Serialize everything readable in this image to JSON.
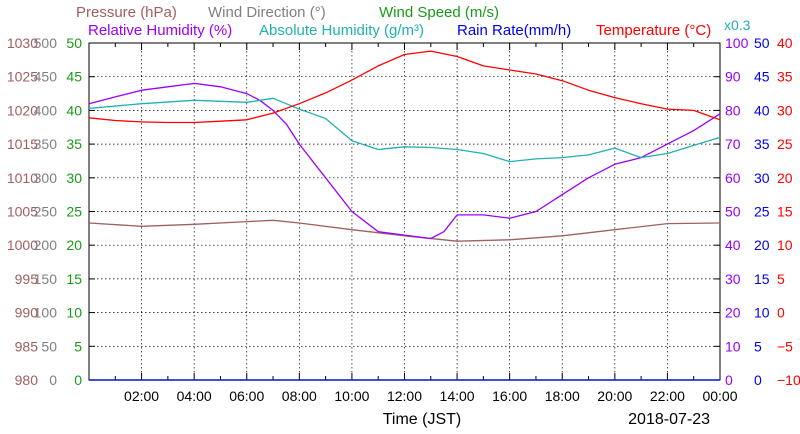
{
  "chart_data": {
    "type": "line",
    "xlabel": "Time (JST)",
    "date": "2018-07-23",
    "x_ticks": [
      "02:00",
      "04:00",
      "06:00",
      "08:00",
      "10:00",
      "12:00",
      "14:00",
      "16:00",
      "18:00",
      "20:00",
      "22:00",
      "00:00"
    ],
    "x_range_hours": [
      0,
      24
    ],
    "grid": true,
    "legend": {
      "row1": [
        "Pressure (hPa)",
        "Wind Direction (°)",
        "Wind Speed (m/s)"
      ],
      "row2": [
        "Relative Humidity (%)",
        "Absolute Humidity (g/m³)",
        "Rain Rate(mm/h)",
        "Temperature (°C)"
      ],
      "multiplier_note": "x0.3"
    },
    "axes": {
      "pressure": {
        "label": "Pressure (hPa)",
        "color": "#a0605f",
        "range": [
          980,
          1030
        ],
        "ticks": [
          "980",
          "985",
          "990",
          "995",
          "1000",
          "1005",
          "1010",
          "1015",
          "1020",
          "1025",
          "1030"
        ]
      },
      "wind_direction": {
        "label": "Wind Direction (°)",
        "color": "#808080",
        "range": [
          0,
          500
        ],
        "ticks": [
          "0",
          "50",
          "100",
          "150",
          "200",
          "250",
          "300",
          "350",
          "400",
          "450",
          "500"
        ]
      },
      "wind_speed": {
        "label": "Wind Speed (m/s)",
        "color": "#1a9a1a",
        "range": [
          0,
          50
        ],
        "ticks": [
          "0",
          "5",
          "10",
          "15",
          "20",
          "25",
          "30",
          "35",
          "40",
          "45",
          "50"
        ]
      },
      "relative_humidity": {
        "label": "Relative Humidity (%)",
        "color": "#9a00ff",
        "range": [
          0,
          100
        ],
        "ticks": [
          "0",
          "10",
          "20",
          "30",
          "40",
          "50",
          "60",
          "70",
          "80",
          "90",
          "100"
        ]
      },
      "rain_rate": {
        "label": "Rain Rate(mm/h)",
        "color": "#0000ee",
        "range": [
          0,
          50
        ],
        "ticks": [
          "0",
          "5",
          "10",
          "15",
          "20",
          "25",
          "30",
          "35",
          "40",
          "45",
          "50"
        ]
      },
      "temperature": {
        "label": "Temperature (°C)",
        "color": "#ff0000",
        "range": [
          -10,
          40
        ],
        "ticks": [
          "−10",
          "−5",
          "0",
          "5",
          "10",
          "15",
          "20",
          "25",
          "30",
          "35",
          "40"
        ]
      }
    },
    "series": [
      {
        "name": "Pressure (hPa)",
        "axis": "pressure",
        "color": "#a0605f",
        "x": [
          0,
          2,
          4,
          6,
          7,
          8,
          10,
          12,
          14,
          16,
          18,
          20,
          22,
          24
        ],
        "y": [
          1003.3,
          1002.8,
          1003.1,
          1003.5,
          1003.7,
          1003.3,
          1002.3,
          1001.4,
          1000.6,
          1000.8,
          1001.4,
          1002.3,
          1003.2,
          1003.3
        ]
      },
      {
        "name": "Relative Humidity (%)",
        "axis": "relative_humidity",
        "color": "#9a00ff",
        "x": [
          0,
          1,
          2,
          3,
          4,
          5,
          6,
          6.5,
          7,
          7.5,
          8,
          9,
          10,
          11,
          12,
          13,
          13.5,
          14,
          15,
          16,
          17,
          18,
          19,
          20,
          21,
          22,
          23,
          24
        ],
        "y": [
          82,
          84,
          86,
          87,
          88,
          87,
          85,
          83,
          80,
          76,
          70,
          60,
          50,
          44,
          43,
          42,
          44,
          49,
          49,
          48,
          50,
          55,
          60,
          64,
          66,
          70,
          74,
          79
        ]
      },
      {
        "name": "Absolute Humidity (g/m³)",
        "axis": "wind_speed",
        "color": "#20b0b0",
        "x": [
          0,
          2,
          4,
          6,
          7,
          7.5,
          8,
          8.5,
          9,
          10,
          11,
          12,
          13,
          14,
          15,
          16,
          17,
          18,
          19,
          20,
          21,
          22,
          23,
          24
        ],
        "y": [
          40.3,
          41.0,
          41.5,
          41.2,
          41.8,
          41.0,
          40.2,
          39.5,
          38.8,
          35.5,
          34.2,
          34.6,
          34.5,
          34.2,
          33.6,
          32.4,
          32.8,
          33.0,
          33.4,
          34.4,
          33.0,
          33.6,
          34.8,
          36.0
        ]
      },
      {
        "name": "Temperature (°C)",
        "axis": "temperature",
        "color": "#ff0000",
        "x": [
          0,
          1,
          2,
          3,
          4,
          5,
          6,
          7,
          8,
          9,
          10,
          11,
          12,
          13,
          14,
          15,
          16,
          17,
          18,
          19,
          20,
          21,
          22,
          23,
          24
        ],
        "y": [
          28.9,
          28.5,
          28.3,
          28.2,
          28.2,
          28.4,
          28.6,
          29.6,
          31.0,
          32.6,
          34.5,
          36.6,
          38.3,
          38.8,
          38.0,
          36.6,
          36.0,
          35.4,
          34.4,
          33.0,
          31.9,
          31.0,
          30.2,
          30.0,
          28.6
        ]
      },
      {
        "name": "Wind Direction (°)",
        "axis": "wind_direction",
        "color": "#808080",
        "x": [
          0,
          24
        ],
        "y": [
          0,
          0
        ]
      },
      {
        "name": "Wind Speed (m/s)",
        "axis": "wind_speed",
        "color": "#1a9a1a",
        "x": [
          0,
          24
        ],
        "y": [
          0,
          0
        ]
      },
      {
        "name": "Rain Rate(mm/h)",
        "axis": "rain_rate",
        "color": "#0000ee",
        "x": [
          0,
          24
        ],
        "y": [
          0,
          0
        ]
      }
    ]
  }
}
